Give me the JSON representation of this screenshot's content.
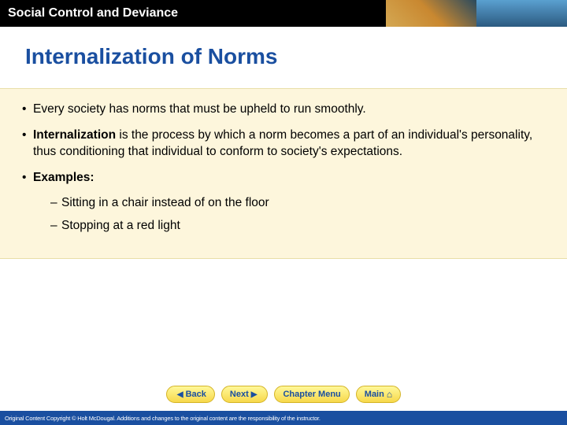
{
  "header": {
    "title": "Social Control and Deviance",
    "bg_color": "#000000",
    "title_color": "#ffffff"
  },
  "slide": {
    "title": "Internalization of Norms",
    "title_color": "#1a4fa0",
    "title_fontsize": 28
  },
  "content": {
    "background_color": "#fdf6dc",
    "bullets": [
      {
        "text_before": "Every society has norms that must be upheld to run smoothly.",
        "bold_term": "",
        "text_after": ""
      },
      {
        "text_before": "",
        "bold_term": "Internalization",
        "text_after": " is the process by which a norm becomes a part of an individual's personality, thus conditioning that individual to conform to society's expectations."
      },
      {
        "text_before": "",
        "bold_term": "Examples:",
        "text_after": ""
      }
    ],
    "sub_bullets": [
      "Sitting in a chair instead of on the floor",
      "Stopping at a red light"
    ]
  },
  "nav": {
    "back_label": "Back",
    "next_label": "Next",
    "chapter_label": "Chapter Menu",
    "main_label": "Main",
    "btn_bg_top": "#fff89a",
    "btn_bg_bottom": "#f7d84a",
    "btn_text_color": "#1a4fa0"
  },
  "footer": {
    "text": "Original Content Copyright © Holt McDougal. Additions and changes to the original content are the responsibility of the instructor.",
    "bg_color": "#1a4fa0",
    "text_color": "#ffffff"
  }
}
